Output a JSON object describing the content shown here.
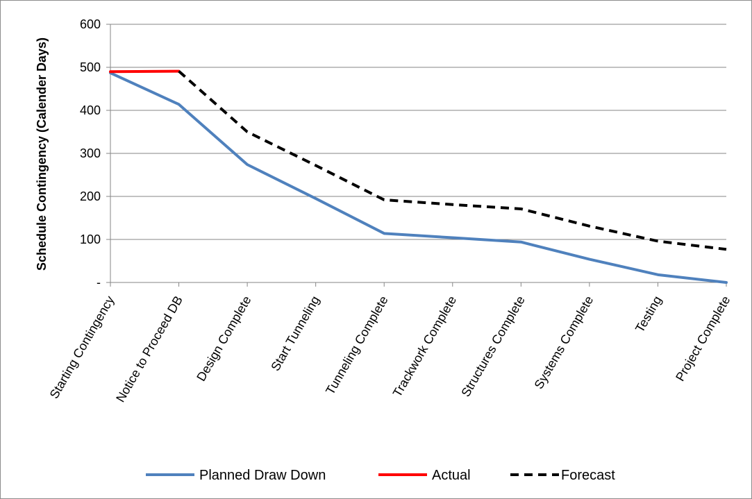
{
  "chart_data": {
    "type": "line",
    "title": "",
    "xlabel": "",
    "ylabel": "Schedule Contingency (Calender Days)",
    "ylim": [
      0,
      600
    ],
    "yticks": [
      {
        "value": 0,
        "label": "-"
      },
      {
        "value": 100,
        "label": "100"
      },
      {
        "value": 200,
        "label": "200"
      },
      {
        "value": 300,
        "label": "300"
      },
      {
        "value": 400,
        "label": "400"
      },
      {
        "value": 500,
        "label": "500"
      },
      {
        "value": 600,
        "label": "600"
      }
    ],
    "grid": true,
    "legend_position": "bottom",
    "categories": [
      "Starting Contingency",
      "Notice to Proceed DB",
      "Design Complete",
      "Start Tunneling",
      "Tunneling Complete",
      "Trackwork Complete",
      "Structures Complete",
      "Systems Complete",
      "Testing",
      "Project Complete"
    ],
    "series": [
      {
        "name": "Planned Draw Down",
        "color": "#4f81bd",
        "style": "solid",
        "values": [
          487,
          414,
          274,
          195,
          114,
          104,
          94,
          54,
          18,
          0
        ]
      },
      {
        "name": "Actual",
        "color": "#ff0000",
        "style": "solid",
        "values": [
          490,
          491,
          null,
          null,
          null,
          null,
          null,
          null,
          null,
          null
        ]
      },
      {
        "name": "Forecast",
        "color": "#000000",
        "style": "dashed",
        "values": [
          null,
          491,
          350,
          272,
          192,
          181,
          171,
          131,
          96,
          77
        ]
      }
    ]
  }
}
